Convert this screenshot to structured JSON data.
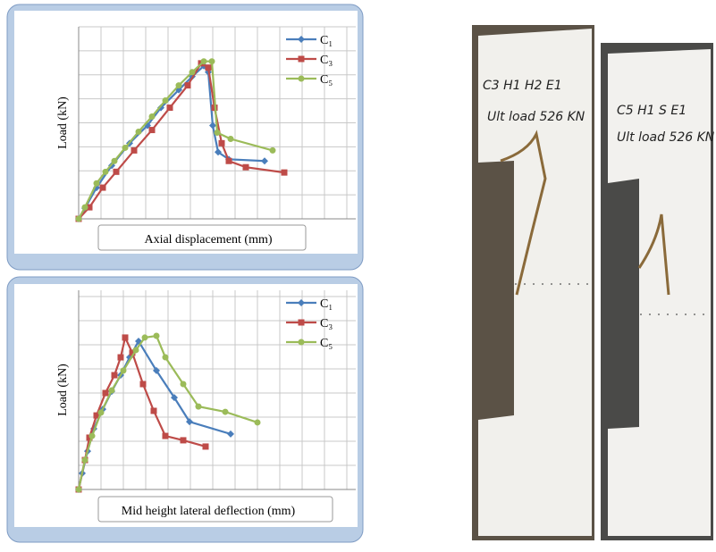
{
  "chart_data": [
    {
      "type": "line",
      "xlabel": "Axial displacement (mm)",
      "ylabel": "Load (kN)",
      "xlim": [
        0,
        12.4
      ],
      "ylim": [
        0,
        8
      ],
      "grid": true,
      "legend": "upper right",
      "series": [
        {
          "name": "C₁",
          "color": "#4a7ebb",
          "marker": "diamond",
          "x": [
            0,
            0.28,
            0.8,
            1.48,
            2.28,
            3.08,
            3.68,
            4.48,
            5.08,
            5.6,
            5.8,
            6.0,
            6.24,
            6.72,
            8.32
          ],
          "values": [
            0,
            0.44,
            1.3,
            2.22,
            3.15,
            3.89,
            4.63,
            5.37,
            5.93,
            6.37,
            6.11,
            3.89,
            2.78,
            2.48,
            2.41
          ]
        },
        {
          "name": "C₃",
          "color": "#be4b48",
          "marker": "square",
          "x": [
            0,
            0.48,
            1.08,
            1.68,
            2.48,
            3.28,
            4.08,
            4.88,
            5.48,
            5.8,
            6.08,
            6.4,
            6.72,
            7.48,
            9.2
          ],
          "values": [
            0,
            0.48,
            1.3,
            1.96,
            2.85,
            3.7,
            4.63,
            5.56,
            6.48,
            6.3,
            4.63,
            3.15,
            2.41,
            2.15,
            1.93
          ]
        },
        {
          "name": "C₅",
          "color": "#9bbb59",
          "marker": "circle",
          "x": [
            0,
            0.28,
            0.8,
            1.2,
            1.6,
            2.08,
            2.68,
            3.28,
            3.88,
            4.48,
            5.08,
            5.6,
            5.96,
            6.2,
            6.8,
            8.68
          ],
          "values": [
            0,
            0.48,
            1.48,
            1.96,
            2.41,
            2.96,
            3.63,
            4.26,
            4.93,
            5.56,
            6.11,
            6.56,
            6.56,
            3.59,
            3.33,
            2.85
          ]
        }
      ]
    },
    {
      "type": "line",
      "xlabel": "Mid height lateral deflection (mm)",
      "ylabel": "Load (kN)",
      "xlim": [
        0,
        12.4
      ],
      "ylim": [
        0,
        8.26
      ],
      "grid": true,
      "legend": "upper right",
      "series": [
        {
          "name": "C₁",
          "color": "#4a7ebb",
          "marker": "diamond",
          "x": [
            0,
            0.16,
            0.4,
            0.68,
            1.08,
            1.48,
            1.88,
            2.28,
            2.68,
            3.48,
            4.28,
            4.96,
            6.8
          ],
          "values": [
            0,
            0.67,
            1.59,
            2.52,
            3.33,
            4.07,
            4.74,
            5.48,
            6.15,
            4.93,
            3.81,
            2.81,
            2.3
          ]
        },
        {
          "name": "C₃",
          "color": "#be4b48",
          "marker": "square",
          "x": [
            0,
            0.28,
            0.48,
            0.8,
            1.2,
            1.6,
            1.88,
            2.08,
            2.4,
            2.88,
            3.36,
            3.88,
            4.68,
            5.68
          ],
          "values": [
            0,
            1.22,
            2.15,
            3.07,
            4.0,
            4.74,
            5.48,
            6.3,
            5.67,
            4.37,
            3.26,
            2.22,
            2.04,
            1.78
          ]
        },
        {
          "name": "C₅",
          "color": "#9bbb59",
          "marker": "circle",
          "x": [
            0,
            0.28,
            0.6,
            1.0,
            1.48,
            2.0,
            2.56,
            2.96,
            3.48,
            3.88,
            4.68,
            5.36,
            6.56,
            8.0
          ],
          "values": [
            0,
            1.22,
            2.22,
            3.19,
            4.11,
            4.93,
            5.78,
            6.3,
            6.37,
            5.48,
            4.37,
            3.44,
            3.22,
            2.78
          ]
        }
      ]
    }
  ],
  "photo": {
    "labels": [
      "C3 H1 H2 E1",
      "Ult load 526 KN",
      "C5 H1 S E1",
      "Ult load 526 KN"
    ]
  }
}
